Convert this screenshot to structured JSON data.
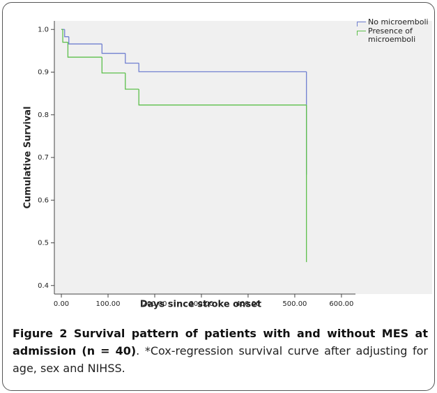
{
  "chart_data": {
    "type": "step",
    "xlabel": "Days since stroke onset",
    "ylabel": "Cumulative Survival",
    "xlim": [
      -15,
      630
    ],
    "ylim": [
      0.38,
      1.02
    ],
    "xticks": [
      {
        "value": 0,
        "label": "0.00"
      },
      {
        "value": 100,
        "label": "100.00"
      },
      {
        "value": 200,
        "label": "200.00"
      },
      {
        "value": 300,
        "label": "300.00"
      },
      {
        "value": 400,
        "label": "400.00"
      },
      {
        "value": 500,
        "label": "500.00"
      },
      {
        "value": 600,
        "label": "600.00"
      }
    ],
    "yticks": [
      0.4,
      0.5,
      0.6,
      0.7,
      0.8,
      0.9,
      {
        "value": 1,
        "label": "1.0"
      }
    ],
    "series": [
      {
        "name": "No microemboli",
        "color": "#6f7fd0",
        "x": [
          0,
          7,
          16,
          87,
          137,
          166,
          525
        ],
        "values": [
          1.0,
          0.983,
          0.966,
          0.944,
          0.921,
          0.901,
          0.66
        ]
      },
      {
        "name": "Presence of microemboli",
        "color": "#5cbf4a",
        "x": [
          0,
          3,
          14,
          87,
          137,
          166,
          525
        ],
        "values": [
          1.0,
          0.97,
          0.935,
          0.898,
          0.86,
          0.823,
          0.455
        ]
      }
    ]
  },
  "caption": {
    "title": "Figure 2 Survival pattern of patients with and without MES at admission (n = 40)",
    "text": ". *Cox-regression survival curve after adjusting for age, sex and NIHSS."
  }
}
